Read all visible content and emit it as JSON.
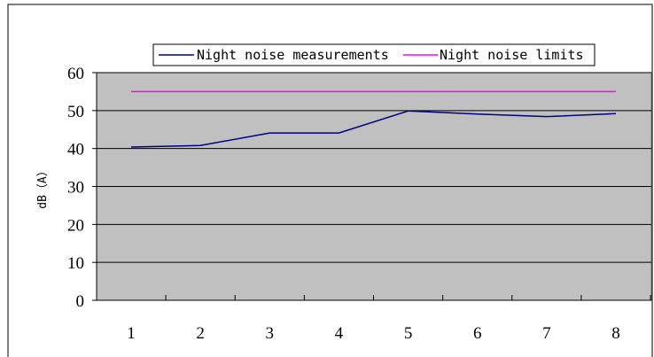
{
  "chart_data": {
    "type": "line",
    "x": [
      1,
      2,
      3,
      4,
      5,
      6,
      7,
      8
    ],
    "series": [
      {
        "name": "Night noise measurements",
        "color": "#000080",
        "values": [
          40.4,
          40.8,
          44.1,
          44.1,
          49.9,
          49.1,
          48.4,
          49.2
        ]
      },
      {
        "name": "Night noise limits",
        "color": "#ff00ff",
        "values": [
          55,
          55,
          55,
          55,
          55,
          55,
          55,
          55
        ]
      }
    ],
    "title": "",
    "xlabel": "",
    "ylabel": "dB（A）",
    "ylim": [
      0,
      60
    ],
    "yticks": [
      0,
      10,
      20,
      30,
      40,
      50,
      60
    ],
    "grid": "horizontal",
    "plot_background": "#c0c0c0",
    "legend_position": "top"
  }
}
